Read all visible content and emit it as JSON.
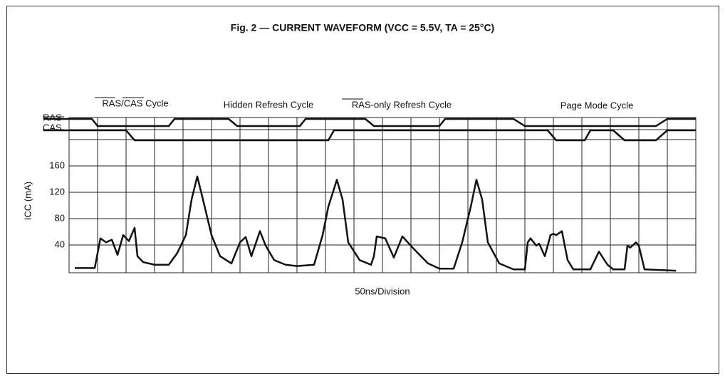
{
  "chart_data": {
    "type": "line",
    "title": "Fig. 2 — CURRENT WAVEFORM (VCC = 5.5V, TA = 25°C)",
    "y_label": "ICC (mA)",
    "x_label": "50ns/Division",
    "annotations": [
      "RAS/CAS Cycle",
      "Hidden Refresh Cycle",
      "RAS-only Refresh Cycle",
      "Page Mode Cycle"
    ],
    "xlim": [
      0,
      22
    ],
    "ylim": [
      0,
      200
    ],
    "yticks": [
      40,
      80,
      120,
      160
    ],
    "grid": true,
    "series": [
      {
        "name": "ICC",
        "color": "#111111",
        "x": [
          0.2,
          0.9,
          1.1,
          1.3,
          1.5,
          1.7,
          1.9,
          2.1,
          2.3,
          2.4,
          2.6,
          3.0,
          3.5,
          3.8,
          4.1,
          4.3,
          4.5,
          4.7,
          5.0,
          5.3,
          5.7,
          6.0,
          6.2,
          6.4,
          6.7,
          6.9,
          7.2,
          7.6,
          8.0,
          8.6,
          8.9,
          9.1,
          9.4,
          9.6,
          9.8,
          10.2,
          10.6,
          10.7,
          10.8,
          11.1,
          11.4,
          11.7,
          12.1,
          12.6,
          13.0,
          13.5,
          13.8,
          14.1,
          14.3,
          14.5,
          14.7,
          15.1,
          15.6,
          16.0,
          16.1,
          16.2,
          16.4,
          16.5,
          16.7,
          16.9,
          17.0,
          17.1,
          17.3,
          17.5,
          17.7,
          18.3,
          18.6,
          18.9,
          19.1,
          19.5,
          19.6,
          19.7,
          19.9,
          20.0,
          20.2,
          21.3
        ],
        "values": [
          5,
          5,
          50,
          44,
          48,
          25,
          55,
          46,
          66,
          23,
          14,
          10,
          10,
          28,
          55,
          109,
          144,
          109,
          55,
          23,
          12,
          44,
          52,
          23,
          61,
          39,
          17,
          10,
          8,
          10,
          55,
          98,
          139,
          109,
          44,
          17,
          10,
          23,
          53,
          50,
          21,
          53,
          34,
          12,
          4,
          4,
          44,
          98,
          139,
          109,
          44,
          12,
          3,
          3,
          44,
          50,
          39,
          42,
          23,
          55,
          57,
          55,
          61,
          17,
          3,
          3,
          30,
          10,
          3,
          3,
          39,
          36,
          44,
          39,
          3,
          1
        ]
      }
    ],
    "signals": [
      {
        "name": "RAS",
        "x": [
          -0.9,
          0.8,
          1.0,
          3.5,
          3.7,
          5.6,
          5.9,
          8.1,
          8.3,
          10.4,
          10.7,
          13.0,
          13.2,
          15.6,
          16.0,
          20.6,
          21.0,
          22
        ],
        "values": [
          1,
          1,
          0,
          0,
          1,
          1,
          0,
          0,
          1,
          1,
          0,
          0,
          1,
          1,
          0,
          0,
          1,
          1
        ]
      },
      {
        "name": "CAS",
        "x": [
          -0.9,
          2.0,
          2.3,
          9.1,
          9.3,
          16.8,
          17.1,
          18.1,
          18.3,
          19.1,
          19.5,
          20.6,
          21.0,
          22
        ],
        "values": [
          1,
          1,
          0,
          0,
          1,
          1,
          0,
          0,
          1,
          1,
          0,
          0,
          1,
          1
        ]
      }
    ]
  }
}
